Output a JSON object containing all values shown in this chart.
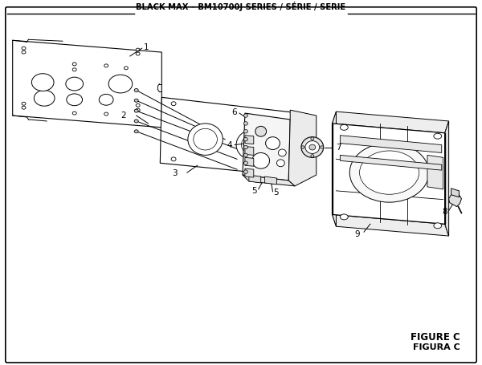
{
  "title": "BLACK MAX – BM10700J SERIES / SÉRIE / SERIE",
  "figure_label": "FIGURE C",
  "figura_label": "FIGURA C",
  "bg_color": "#ffffff",
  "lc": "#000000",
  "tc": "#000000"
}
